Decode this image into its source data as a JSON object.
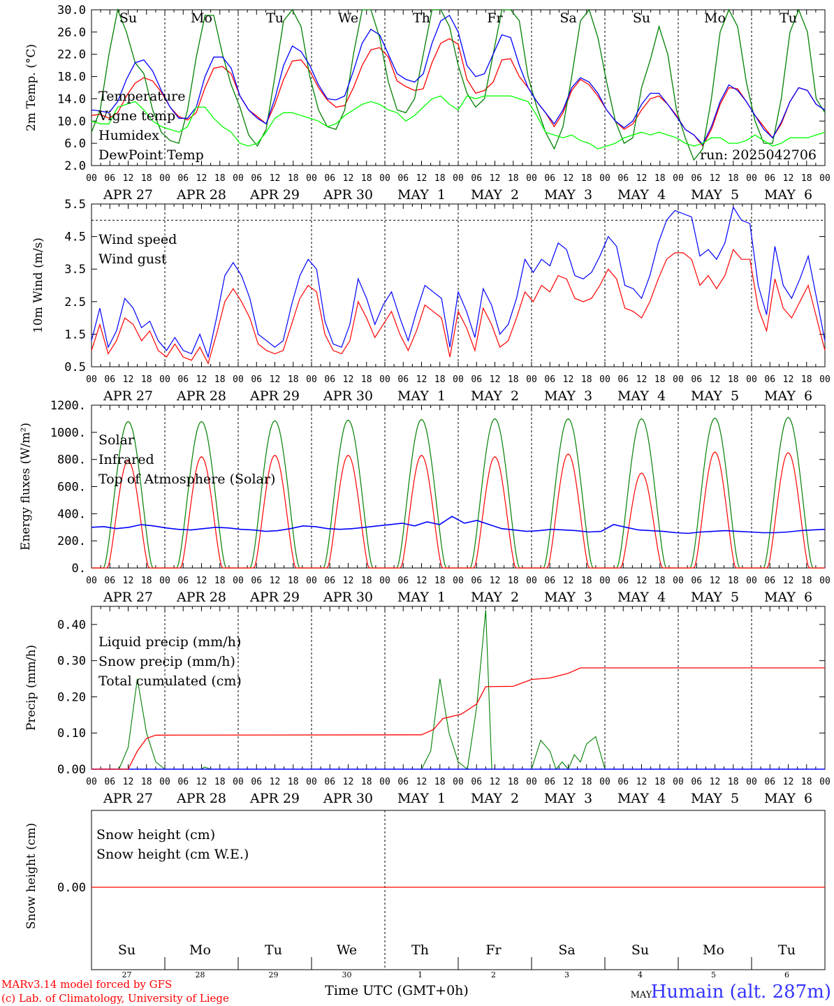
{
  "chart_data": [
    {
      "type": "line",
      "ylabel": "2m Temp. (°C)",
      "ylim": [
        2.0,
        30.0
      ],
      "yticks": [
        "2.0",
        "6.0",
        "10.0",
        "14.0",
        "18.0",
        "22.0",
        "26.0",
        "30.0"
      ],
      "weekday_labels": [
        "Su",
        "Mo",
        "Tu",
        "We",
        "Th",
        "Fr",
        "Sa",
        "Su",
        "Mo",
        "Tu"
      ],
      "annotation": "run: 2025042706",
      "series": [
        {
          "name": "Temperature",
          "color": "#ff0000",
          "values": [
            11.0,
            11.2,
            10.5,
            11.5,
            14.5,
            16.8,
            17.8,
            17.2,
            15.2,
            12.5,
            10.8,
            10.2,
            11.5,
            16.0,
            19.5,
            19.8,
            18.5,
            14.5,
            12.0,
            10.8,
            9.5,
            13.0,
            17.5,
            20.8,
            21.0,
            19.0,
            16.0,
            13.8,
            12.5,
            12.8,
            16.0,
            20.0,
            22.8,
            23.2,
            21.5,
            17.2,
            16.2,
            15.5,
            15.8,
            20.5,
            24.0,
            24.8,
            23.8,
            17.5,
            15.0,
            15.5,
            17.0,
            21.0,
            21.2,
            18.0,
            16.0,
            13.5,
            11.5,
            9.0,
            11.5,
            15.5,
            17.5,
            16.5,
            14.5,
            12.0,
            10.0,
            8.5,
            9.5,
            12.0,
            14.0,
            14.5,
            13.0,
            11.0,
            8.5,
            7.5,
            5.5,
            8.5,
            13.0,
            16.0,
            15.8,
            13.5,
            11.0,
            9.0,
            7.0,
            9.5,
            13.5,
            16.0,
            15.5,
            13.0,
            12.0
          ]
        },
        {
          "name": "Vigne temp",
          "color": "#008000",
          "values": [
            8.0,
            12.0,
            22.0,
            30.5,
            26.0,
            20.5,
            18.5,
            12.0,
            8.0,
            6.5,
            6.0,
            12.0,
            21.5,
            29.0,
            29.0,
            22.0,
            16.5,
            12.5,
            7.5,
            5.5,
            8.5,
            18.0,
            28.0,
            31.0,
            27.0,
            18.0,
            12.0,
            9.0,
            8.5,
            12.0,
            22.0,
            30.0,
            32.0,
            25.0,
            17.0,
            12.0,
            11.5,
            14.0,
            22.0,
            30.0,
            32.0,
            27.0,
            20.0,
            15.0,
            12.5,
            14.0,
            22.0,
            30.0,
            32.0,
            28.0,
            18.0,
            12.5,
            8.0,
            5.0,
            9.0,
            18.0,
            28.0,
            30.5,
            25.0,
            17.0,
            10.0,
            6.0,
            7.0,
            16.0,
            21.0,
            27.0,
            22.0,
            12.0,
            7.0,
            3.0,
            5.0,
            14.0,
            26.0,
            30.5,
            27.0,
            17.0,
            10.0,
            6.0,
            6.0,
            14.0,
            26.0,
            31.0,
            26.0,
            14.0,
            11.5
          ]
        },
        {
          "name": "Humidex",
          "color": "#0000ff",
          "values": [
            12.0,
            11.8,
            11.5,
            13.5,
            17.5,
            20.5,
            21.0,
            19.0,
            15.5,
            12.5,
            10.5,
            10.5,
            12.5,
            18.0,
            21.5,
            21.5,
            19.5,
            14.5,
            12.0,
            10.5,
            9.5,
            14.0,
            20.0,
            23.5,
            22.5,
            20.0,
            16.5,
            14.0,
            13.8,
            14.5,
            19.0,
            24.0,
            26.5,
            25.5,
            22.0,
            18.5,
            17.5,
            17.0,
            18.5,
            24.0,
            28.0,
            29.0,
            26.0,
            20.0,
            18.0,
            18.5,
            22.0,
            25.5,
            25.0,
            20.0,
            16.0,
            13.5,
            11.5,
            9.5,
            12.0,
            16.0,
            17.8,
            17.0,
            15.0,
            12.0,
            10.0,
            8.8,
            10.0,
            13.0,
            15.0,
            15.0,
            13.0,
            10.8,
            8.5,
            7.5,
            5.8,
            9.0,
            13.5,
            16.5,
            15.5,
            13.5,
            11.0,
            8.5,
            7.0,
            9.8,
            13.5,
            16.0,
            15.5,
            13.0,
            12.0
          ]
        },
        {
          "name": "DewPoint Temp",
          "color": "#00ff00",
          "values": [
            10.0,
            9.5,
            9.5,
            12.5,
            13.0,
            13.5,
            12.0,
            10.0,
            9.0,
            8.5,
            8.0,
            9.0,
            12.5,
            12.5,
            10.5,
            9.0,
            8.0,
            6.0,
            5.5,
            6.0,
            8.0,
            10.5,
            11.5,
            11.5,
            11.0,
            10.5,
            10.0,
            9.0,
            9.5,
            11.0,
            12.0,
            13.0,
            13.5,
            13.0,
            12.0,
            11.5,
            10.0,
            11.0,
            12.5,
            14.0,
            14.5,
            13.0,
            12.0,
            14.5,
            14.0,
            14.5,
            14.5,
            14.5,
            14.5,
            14.0,
            13.5,
            11.0,
            8.0,
            7.5,
            7.0,
            7.5,
            6.5,
            6.0,
            5.0,
            5.5,
            6.0,
            7.0,
            7.5,
            8.0,
            7.5,
            8.0,
            7.5,
            7.0,
            6.0,
            5.5,
            6.0,
            7.0,
            7.0,
            6.0,
            6.0,
            6.5,
            7.5,
            6.5,
            5.5,
            6.0,
            7.0,
            7.0,
            7.0,
            7.5,
            8.0
          ]
        }
      ]
    },
    {
      "type": "line",
      "ylabel": "10m Wind (m/s)",
      "ylim": [
        0.5,
        5.5
      ],
      "yticks": [
        "0.5",
        "1.5",
        "2.5",
        "3.5",
        "4.5",
        "5.5"
      ],
      "reference_line": 5.0,
      "series": [
        {
          "name": "Wind speed",
          "color": "#ff0000",
          "values": [
            1.0,
            1.8,
            0.9,
            1.3,
            2.0,
            1.8,
            1.3,
            1.6,
            1.0,
            0.8,
            1.2,
            0.8,
            0.7,
            1.1,
            0.6,
            1.5,
            2.5,
            2.9,
            2.5,
            2.0,
            1.2,
            1.0,
            0.9,
            1.0,
            1.8,
            2.6,
            3.0,
            2.8,
            1.5,
            1.0,
            0.9,
            1.3,
            2.5,
            2.0,
            1.4,
            1.8,
            2.2,
            1.5,
            1.0,
            1.6,
            2.4,
            2.2,
            2.0,
            0.8,
            2.2,
            1.7,
            1.0,
            2.3,
            1.8,
            1.1,
            1.3,
            2.0,
            2.8,
            2.5,
            3.0,
            2.8,
            3.3,
            3.2,
            2.6,
            2.5,
            2.6,
            3.0,
            3.5,
            3.2,
            2.3,
            2.2,
            2.0,
            2.5,
            3.2,
            3.8,
            4.0,
            4.0,
            3.8,
            3.0,
            3.3,
            2.9,
            3.3,
            4.1,
            3.8,
            3.8,
            2.3,
            1.6,
            3.2,
            2.3,
            2.0,
            2.5,
            3.0,
            2.0,
            1.0
          ]
        },
        {
          "name": "Wind gust",
          "color": "#0000ff",
          "values": [
            1.3,
            2.3,
            1.1,
            1.6,
            2.6,
            2.3,
            1.7,
            1.9,
            1.3,
            1.0,
            1.4,
            1.0,
            0.9,
            1.5,
            0.8,
            2.0,
            3.3,
            3.7,
            3.3,
            2.6,
            1.5,
            1.3,
            1.1,
            1.3,
            2.4,
            3.3,
            3.8,
            3.5,
            1.9,
            1.2,
            1.1,
            1.8,
            3.2,
            2.6,
            1.8,
            2.4,
            2.8,
            2.0,
            1.3,
            2.2,
            3.0,
            2.8,
            2.6,
            1.1,
            2.8,
            2.2,
            1.4,
            2.9,
            2.4,
            1.5,
            1.8,
            2.6,
            3.8,
            3.4,
            3.8,
            3.6,
            4.3,
            4.1,
            3.3,
            3.2,
            3.4,
            3.9,
            4.5,
            4.2,
            3.0,
            2.9,
            2.6,
            3.3,
            4.3,
            5.0,
            5.3,
            5.2,
            5.1,
            3.9,
            4.1,
            3.8,
            4.3,
            5.4,
            5.0,
            4.9,
            3.0,
            2.1,
            4.2,
            3.0,
            2.6,
            3.2,
            3.9,
            2.6,
            1.3
          ]
        }
      ]
    },
    {
      "type": "line",
      "ylabel": "Energy fluxes (W/m²)",
      "ylim": [
        0,
        1200
      ],
      "yticks": [
        "0.",
        "200.",
        "400.",
        "600.",
        "800.",
        "1000.",
        "1200."
      ],
      "series": [
        {
          "name": "Solar",
          "color": "#ff0000",
          "peaks": [
            790,
            820,
            830,
            830,
            830,
            820,
            840,
            700,
            855,
            850
          ]
        },
        {
          "name": "Infrared",
          "color": "#0000ff",
          "values": [
            300,
            305,
            290,
            300,
            320,
            310,
            295,
            285,
            280,
            290,
            300,
            295,
            285,
            280,
            270,
            275,
            290,
            310,
            305,
            290,
            285,
            290,
            300,
            310,
            320,
            330,
            310,
            340,
            320,
            380,
            330,
            350,
            320,
            290,
            280,
            270,
            275,
            285,
            280,
            275,
            265,
            270,
            320,
            300,
            280,
            275,
            270,
            260,
            255,
            265,
            270,
            275,
            270,
            265,
            260,
            260,
            265,
            275,
            280,
            285
          ]
        },
        {
          "name": "Top of Atmosphere (Solar)",
          "color": "#008000",
          "peaks": [
            1080,
            1080,
            1085,
            1090,
            1095,
            1100,
            1100,
            1100,
            1105,
            1110
          ]
        }
      ]
    },
    {
      "type": "line",
      "ylabel": "Precip (mm/h)",
      "ylim": [
        0,
        0.45
      ],
      "yticks": [
        "0.00",
        "0.10",
        "0.20",
        "0.30",
        "0.40"
      ],
      "series": [
        {
          "name": "Liquid precip (mm/h)",
          "color": "#008000"
        },
        {
          "name": "Snow precip (mm/h)",
          "color": "#0000ff"
        },
        {
          "name": "Total cumulated (cm)",
          "color": "#ff0000"
        }
      ]
    },
    {
      "type": "line",
      "ylabel": "Snow height (cm)",
      "yticks": [
        "0.00"
      ],
      "series": [
        {
          "name": "Snow height (cm)",
          "color": "#ff0000"
        },
        {
          "name": "Snow height (cm W.E.)",
          "color": "#0000ff"
        }
      ]
    }
  ],
  "x_axis": {
    "hour_labels": [
      "00",
      "06",
      "12",
      "18"
    ],
    "final_hour": "00",
    "day_labels": [
      "APR 27",
      "APR 28",
      "APR 29",
      "APR 30",
      "MAY  1",
      "MAY  2",
      "MAY  3",
      "MAY  4",
      "MAY  5",
      "MAY  6"
    ],
    "bottom_weekdays": [
      "Su",
      "Mo",
      "Tu",
      "We",
      "Th",
      "Fr",
      "Sa",
      "Su",
      "Mo",
      "Tu"
    ],
    "bottom_daynums": [
      "27",
      "28",
      "29",
      "30",
      "1",
      "2",
      "3",
      "4",
      "5",
      "6"
    ],
    "weekend_color": "#ff0000",
    "title": "Time UTC (GMT+0h)",
    "month": "MAY"
  },
  "footer": {
    "line1": "MARv3.14 model forced by GFS",
    "line2": "(c) Lab. of Climatology, University of Liege",
    "station": "Humain (alt. 287m)"
  }
}
